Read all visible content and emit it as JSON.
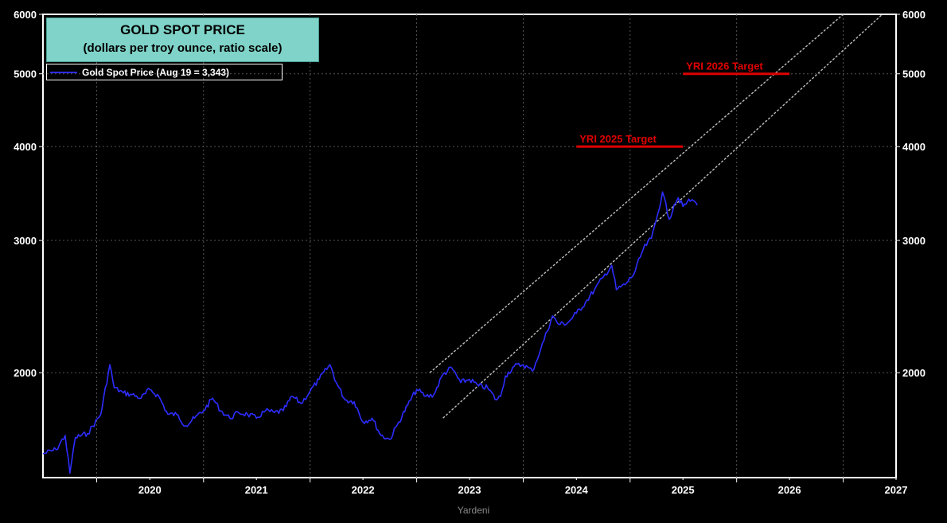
{
  "chart_data": {
    "type": "line",
    "title": "GOLD SPOT PRICE",
    "subtitle": "(dollars per troy ounce, ratio scale)",
    "y_scale": "log",
    "ylim": [
      1450,
      6000
    ],
    "y_ticks": [
      "2000",
      "3000",
      "4000",
      "5000",
      "6000"
    ],
    "x_ticks": [
      "2020",
      "2021",
      "2022",
      "2023",
      "2024",
      "2025",
      "2026",
      "2027"
    ],
    "xlim": [
      "2019-07-01",
      "2027-07-01"
    ],
    "grid": true,
    "legend_position": "top-left",
    "series": [
      {
        "name": "Gold Spot Price (Aug 19 = 3,343)",
        "color": "#2d2dff",
        "points": [
          [
            "2019-07-01",
            1560
          ],
          [
            "2019-08-15",
            1580
          ],
          [
            "2019-09-15",
            1650
          ],
          [
            "2019-10-01",
            1470
          ],
          [
            "2019-10-20",
            1640
          ],
          [
            "2019-12-01",
            1660
          ],
          [
            "2020-01-15",
            1760
          ],
          [
            "2020-02-15",
            2050
          ],
          [
            "2020-03-01",
            1910
          ],
          [
            "2020-04-01",
            1880
          ],
          [
            "2020-05-01",
            1870
          ],
          [
            "2020-06-01",
            1850
          ],
          [
            "2020-07-01",
            1900
          ],
          [
            "2020-08-01",
            1860
          ],
          [
            "2020-09-01",
            1760
          ],
          [
            "2020-10-01",
            1760
          ],
          [
            "2020-11-01",
            1700
          ],
          [
            "2020-12-01",
            1740
          ],
          [
            "2021-01-01",
            1780
          ],
          [
            "2021-02-01",
            1850
          ],
          [
            "2021-03-01",
            1780
          ],
          [
            "2021-04-01",
            1740
          ],
          [
            "2021-05-01",
            1770
          ],
          [
            "2021-06-01",
            1760
          ],
          [
            "2021-07-01",
            1740
          ],
          [
            "2021-08-01",
            1780
          ],
          [
            "2021-09-01",
            1770
          ],
          [
            "2021-10-01",
            1780
          ],
          [
            "2021-11-01",
            1860
          ],
          [
            "2021-12-01",
            1820
          ],
          [
            "2022-01-01",
            1890
          ],
          [
            "2022-02-01",
            1960
          ],
          [
            "2022-03-10",
            2050
          ],
          [
            "2022-04-01",
            1940
          ],
          [
            "2022-05-01",
            1840
          ],
          [
            "2022-06-01",
            1830
          ],
          [
            "2022-07-01",
            1720
          ],
          [
            "2022-08-01",
            1740
          ],
          [
            "2022-09-01",
            1650
          ],
          [
            "2022-10-01",
            1630
          ],
          [
            "2022-11-01",
            1720
          ],
          [
            "2022-12-01",
            1810
          ],
          [
            "2023-01-01",
            1900
          ],
          [
            "2023-02-01",
            1860
          ],
          [
            "2023-03-01",
            1870
          ],
          [
            "2023-04-01",
            1990
          ],
          [
            "2023-05-01",
            2030
          ],
          [
            "2023-06-01",
            1940
          ],
          [
            "2023-07-01",
            1960
          ],
          [
            "2023-08-01",
            1920
          ],
          [
            "2023-09-01",
            1910
          ],
          [
            "2023-10-01",
            1840
          ],
          [
            "2023-10-15",
            1860
          ],
          [
            "2023-11-01",
            1980
          ],
          [
            "2023-12-01",
            2040
          ],
          [
            "2024-01-01",
            2050
          ],
          [
            "2024-02-01",
            2010
          ],
          [
            "2024-03-01",
            2150
          ],
          [
            "2024-04-10",
            2380
          ],
          [
            "2024-05-01",
            2320
          ],
          [
            "2024-06-01",
            2330
          ],
          [
            "2024-07-01",
            2400
          ],
          [
            "2024-08-01",
            2480
          ],
          [
            "2024-09-01",
            2580
          ],
          [
            "2024-10-01",
            2680
          ],
          [
            "2024-10-30",
            2780
          ],
          [
            "2024-11-15",
            2580
          ],
          [
            "2024-12-15",
            2620
          ],
          [
            "2025-01-15",
            2710
          ],
          [
            "2025-02-15",
            2920
          ],
          [
            "2025-03-15",
            3020
          ],
          [
            "2025-04-01",
            3200
          ],
          [
            "2025-04-22",
            3480
          ],
          [
            "2025-05-15",
            3200
          ],
          [
            "2025-06-01",
            3350
          ],
          [
            "2025-06-15",
            3420
          ],
          [
            "2025-07-01",
            3330
          ],
          [
            "2025-07-15",
            3370
          ],
          [
            "2025-08-01",
            3400
          ],
          [
            "2025-08-19",
            3343
          ]
        ]
      }
    ],
    "trend_channel": {
      "color": "#bfbfbf",
      "upper": [
        [
          "2023-02-15",
          2000
        ],
        [
          "2027-01-01",
          6000
        ]
      ],
      "lower": [
        [
          "2023-04-01",
          1740
        ],
        [
          "2027-05-15",
          6000
        ]
      ]
    },
    "annotations": [
      {
        "text": "YRI 2025 Target",
        "value": 4000,
        "x_start": "2024-07-01",
        "x_end": "2025-07-01",
        "color": "#e00000"
      },
      {
        "text": "YRI 2026 Target",
        "value": 5000,
        "x_start": "2025-07-01",
        "x_end": "2026-07-01",
        "color": "#e00000"
      }
    ]
  },
  "footer": "Yardeni"
}
